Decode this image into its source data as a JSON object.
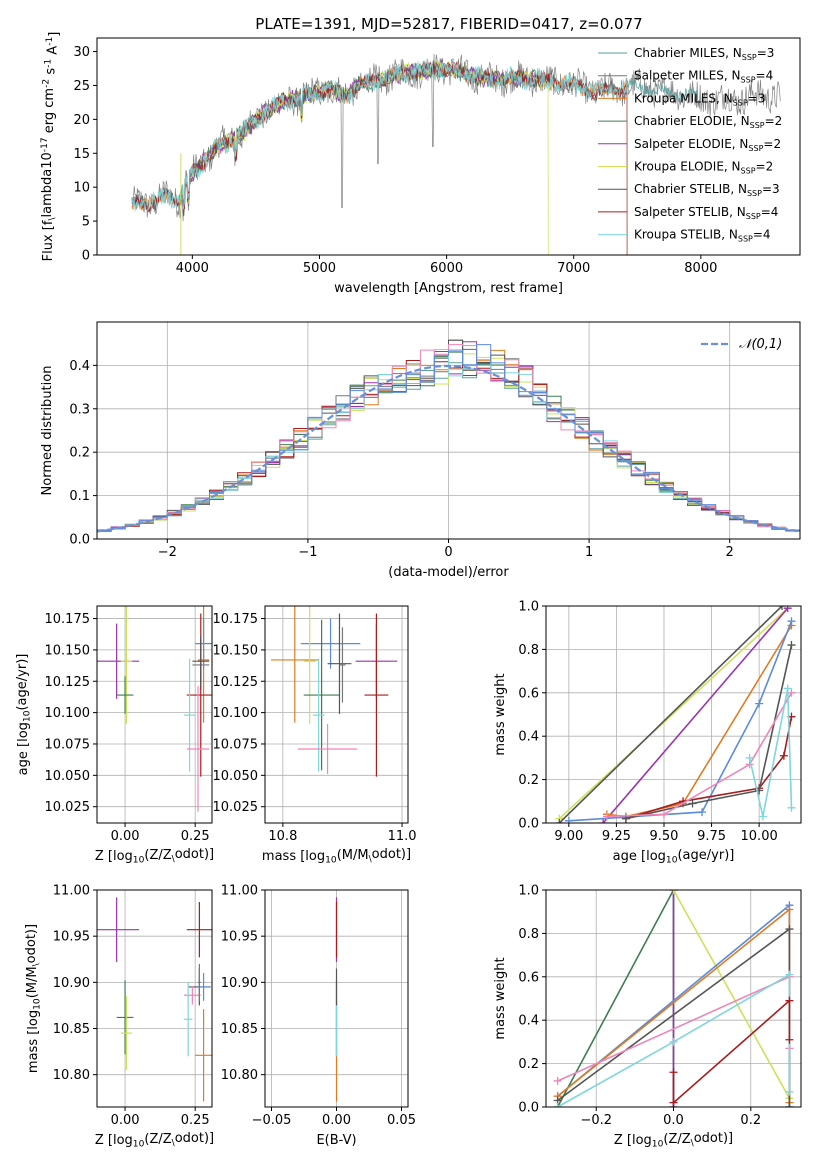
{
  "figure_title": "PLATE=1391, MJD=52817, FIBERID=0417, z=0.077",
  "colors": {
    "Chabrier MILES": "#5aa0a0",
    "Salpeter MILES": "#777777",
    "Kroupa MILES": "#e07b22",
    "Chabrier ELODIE": "#3e7d52",
    "Salpeter ELODIE": "#9b32b0",
    "Kroupa ELODIE": "#cfe05a",
    "Chabrier STELIB": "#555555",
    "Salpeter STELIB": "#a81c1c",
    "Kroupa STELIB": "#7fd6dc",
    "blue": "#5b8bd9",
    "pink": "#ee86b8",
    "normal_curve": "#6a90d6"
  },
  "chart_data": [
    {
      "id": "spectrum",
      "type": "line",
      "title": "PLATE=1391, MJD=52817, FIBERID=0417, z=0.077",
      "xlabel": "wavelength [Angstrom, rest frame]",
      "ylabel": "Flux [f$_\\lambda$10$^{-17}$ erg cm$^{-2}$ s$^{-1}$ A$^{-1}$]",
      "xlim": [
        3250,
        8780
      ],
      "ylim": [
        0,
        32
      ],
      "xticks": [
        4000,
        5000,
        6000,
        7000,
        8000
      ],
      "yticks": [
        0,
        5,
        10,
        15,
        20,
        25,
        30
      ],
      "legend_position": "top-right",
      "legend": [
        {
          "label": "Chabrier MILES",
          "suffix": "3",
          "color_key": "Chabrier MILES"
        },
        {
          "label": "Salpeter MILES",
          "suffix": "4",
          "color_key": "Salpeter MILES"
        },
        {
          "label": "Kroupa MILES",
          "suffix": "3",
          "color_key": "Kroupa MILES"
        },
        {
          "label": "Chabrier ELODIE",
          "suffix": "2",
          "color_key": "Chabrier ELODIE"
        },
        {
          "label": "Salpeter ELODIE",
          "suffix": "2",
          "color_key": "Salpeter ELODIE"
        },
        {
          "label": "Kroupa ELODIE",
          "suffix": "2",
          "color_key": "Kroupa ELODIE"
        },
        {
          "label": "Chabrier STELIB",
          "suffix": "3",
          "color_key": "Chabrier STELIB"
        },
        {
          "label": "Salpeter STELIB",
          "suffix": "4",
          "color_key": "Salpeter STELIB"
        },
        {
          "label": "Kroupa STELIB",
          "suffix": "4",
          "color_key": "Kroupa STELIB"
        }
      ],
      "continuum": [
        [
          3500,
          7
        ],
        [
          3600,
          8
        ],
        [
          3700,
          7.5
        ],
        [
          3800,
          9
        ],
        [
          3900,
          8
        ],
        [
          3950,
          11
        ],
        [
          4000,
          12
        ],
        [
          4100,
          14
        ],
        [
          4200,
          16
        ],
        [
          4300,
          17
        ],
        [
          4400,
          18
        ],
        [
          4500,
          20
        ],
        [
          4600,
          21.5
        ],
        [
          4700,
          22.5
        ],
        [
          4800,
          23
        ],
        [
          4900,
          23.5
        ],
        [
          5000,
          24
        ],
        [
          5100,
          24.5
        ],
        [
          5200,
          23.5
        ],
        [
          5300,
          25
        ],
        [
          5400,
          25.5
        ],
        [
          5500,
          26
        ],
        [
          5600,
          26.5
        ],
        [
          5700,
          27
        ],
        [
          5800,
          27
        ],
        [
          5900,
          27.5
        ],
        [
          6000,
          27.5
        ],
        [
          6100,
          27
        ],
        [
          6200,
          26.5
        ],
        [
          6300,
          26
        ],
        [
          6400,
          26
        ],
        [
          6500,
          26
        ],
        [
          6600,
          26
        ],
        [
          6700,
          26
        ],
        [
          6800,
          25.5
        ],
        [
          6900,
          25.5
        ],
        [
          7000,
          25
        ],
        [
          7100,
          24.5
        ],
        [
          7200,
          24
        ],
        [
          7300,
          24.5
        ],
        [
          7400,
          24.5
        ],
        [
          7500,
          25
        ],
        [
          7600,
          24.5
        ],
        [
          7700,
          24
        ],
        [
          7800,
          24
        ],
        [
          7900,
          23.5
        ],
        [
          8000,
          23
        ],
        [
          8100,
          23
        ],
        [
          8200,
          23
        ],
        [
          8300,
          23
        ],
        [
          8400,
          23.5
        ],
        [
          8500,
          23.5
        ],
        [
          8600,
          23.5
        ]
      ]
    },
    {
      "id": "residuals",
      "type": "line",
      "xlabel": "(data-model)/error",
      "ylabel": "Normed distribution",
      "xlim": [
        -2.5,
        2.5
      ],
      "ylim": [
        0,
        0.5
      ],
      "xticks": [
        -2,
        -1,
        0,
        1,
        2
      ],
      "yticks": [
        0.0,
        0.1,
        0.2,
        0.3,
        0.4
      ],
      "legend_position": "top-right",
      "legend": [
        {
          "label": "𝒩(0,1)",
          "color_key": "normal_curve"
        }
      ]
    },
    {
      "id": "age_vs_Z",
      "type": "scatter",
      "xlabel": "Z [log$_{10}$(Z/Z$_\\odot$)]",
      "ylabel": "age  [log$_{10}$($age/yr$)]",
      "xlim": [
        -0.1,
        0.31
      ],
      "ylim": [
        10.012,
        10.185
      ],
      "xticks": [
        0.0,
        0.25
      ],
      "yticks": [
        10.025,
        10.05,
        10.075,
        10.1,
        10.125,
        10.15,
        10.175
      ],
      "points": [
        {
          "c": "Salpeter ELODIE",
          "x": -0.03,
          "y": 10.141,
          "xe": 0.08,
          "ye": 0.03
        },
        {
          "c": "Kroupa ELODIE",
          "x": 0.005,
          "y": 10.141,
          "xe": 0.02,
          "ye": 0.05
        },
        {
          "c": "Chabrier ELODIE",
          "x": 0.0,
          "y": 10.114,
          "xe": 0.03,
          "ye": 0.015
        },
        {
          "c": "Kroupa MILES",
          "x": 0.28,
          "y": 10.142,
          "xe": 0.02,
          "ye": 0.05
        },
        {
          "c": "Salpeter MILES",
          "x": 0.27,
          "y": 10.138,
          "xe": 0.03,
          "ye": 0.02
        },
        {
          "c": "blue",
          "x": 0.28,
          "y": 10.155,
          "xe": 0.03,
          "ye": 0.02
        },
        {
          "c": "Salpeter STELIB",
          "x": 0.27,
          "y": 10.114,
          "xe": 0.05,
          "ye": 0.065
        },
        {
          "c": "Kroupa STELIB",
          "x": 0.23,
          "y": 10.098,
          "xe": 0.02,
          "ye": 0.045
        },
        {
          "c": "pink",
          "x": 0.26,
          "y": 10.071,
          "xe": 0.04,
          "ye": 0.05
        },
        {
          "c": "Chabrier STELIB",
          "x": 0.27,
          "y": 10.141,
          "xe": 0.03,
          "ye": 0.02
        }
      ]
    },
    {
      "id": "age_vs_mass",
      "type": "scatter",
      "xlabel": "mass [log$_{10}$($M/M_\\odot$)]",
      "ylabel": "",
      "xlim": [
        10.77,
        11.01
      ],
      "ylim": [
        10.012,
        10.185
      ],
      "xticks": [
        10.8,
        11.0
      ],
      "yticks": [
        10.025,
        10.05,
        10.075,
        10.1,
        10.125,
        10.15,
        10.175
      ],
      "points": [
        {
          "c": "Kroupa MILES",
          "x": 10.82,
          "y": 10.142,
          "xe": 0.04,
          "ye": 0.05
        },
        {
          "c": "blue",
          "x": 10.88,
          "y": 10.155,
          "xe": 0.05,
          "ye": 0.02
        },
        {
          "c": "Kroupa ELODIE",
          "x": 10.845,
          "y": 10.141,
          "xe": 0.01,
          "ye": 0.05
        },
        {
          "c": "Chabrier ELODIE",
          "x": 10.865,
          "y": 10.114,
          "xe": 0.03,
          "ye": 0.06
        },
        {
          "c": "Kroupa STELIB",
          "x": 10.86,
          "y": 10.098,
          "xe": 0.01,
          "ye": 0.045
        },
        {
          "c": "pink",
          "x": 10.875,
          "y": 10.071,
          "xe": 0.05,
          "ye": 0.02
        },
        {
          "c": "Chabrier STELIB",
          "x": 10.895,
          "y": 10.139,
          "xe": 0.02,
          "ye": 0.04
        },
        {
          "c": "Salpeter ELODIE",
          "x": 10.957,
          "y": 10.141,
          "xe": 0.035,
          "ye": 0.03
        },
        {
          "c": "Salpeter STELIB",
          "x": 10.957,
          "y": 10.114,
          "xe": 0.02,
          "ye": 0.065
        },
        {
          "c": "Salpeter MILES",
          "x": 10.9,
          "y": 10.138,
          "xe": 0.005,
          "ye": 0.03
        }
      ]
    },
    {
      "id": "massweight_vs_age",
      "type": "line",
      "xlabel": "age  [log$_{10}$($age/yr$)]",
      "ylabel": "mass weight",
      "xlim": [
        8.88,
        10.22
      ],
      "ylim": [
        0,
        1
      ],
      "xticks": [
        9.0,
        9.25,
        9.5,
        9.75,
        10.0
      ],
      "yticks": [
        0.0,
        0.2,
        0.4,
        0.6,
        0.8,
        1.0
      ],
      "series": [
        {
          "c": "Kroupa ELODIE",
          "x": [
            8.95,
            10.15
          ],
          "y": [
            0.02,
            0.99
          ]
        },
        {
          "c": "Chabrier STELIB",
          "x": [
            8.95,
            10.12
          ],
          "y": [
            0.0,
            1.0
          ]
        },
        {
          "c": "Salpeter ELODIE",
          "x": [
            9.18,
            10.15
          ],
          "y": [
            0.0,
            0.99
          ]
        },
        {
          "c": "Kroupa MILES",
          "x": [
            9.2,
            9.3,
            9.6,
            10.17
          ],
          "y": [
            0.04,
            0.03,
            0.09,
            0.91
          ]
        },
        {
          "c": "blue",
          "x": [
            9.0,
            9.7,
            10.0,
            10.17
          ],
          "y": [
            0.01,
            0.05,
            0.55,
            0.93
          ]
        },
        {
          "c": "Salpeter STELIB",
          "x": [
            9.3,
            9.6,
            10.0,
            10.13,
            10.17
          ],
          "y": [
            0.02,
            0.1,
            0.16,
            0.31,
            0.49
          ]
        },
        {
          "c": "Chabrier STELIB",
          "x": [
            9.3,
            9.65,
            10.0,
            10.17
          ],
          "y": [
            0.02,
            0.09,
            0.15,
            0.82
          ]
        },
        {
          "c": "pink",
          "x": [
            9.2,
            9.5,
            9.95,
            10.17
          ],
          "y": [
            0.03,
            0.04,
            0.27,
            0.6
          ]
        },
        {
          "c": "Kroupa STELIB",
          "x": [
            9.95,
            10.02,
            10.15,
            10.17
          ],
          "y": [
            0.3,
            0.03,
            0.62,
            0.07
          ]
        }
      ]
    },
    {
      "id": "mass_vs_Z",
      "type": "scatter",
      "xlabel": "Z [log$_{10}$(Z/Z$_\\odot$)]",
      "ylabel": "mass [log$_{10}$($M/M_\\odot$)]",
      "xlim": [
        -0.1,
        0.31
      ],
      "ylim": [
        10.765,
        11.0
      ],
      "xticks": [
        0.0,
        0.25
      ],
      "yticks": [
        10.8,
        10.85,
        10.9,
        10.95,
        11.0
      ],
      "points": [
        {
          "c": "Salpeter ELODIE",
          "x": -0.03,
          "y": 10.957,
          "xe": 0.08,
          "ye": 0.035
        },
        {
          "c": "Chabrier ELODIE",
          "x": 0.0,
          "y": 10.862,
          "xe": 0.03,
          "ye": 0.04
        },
        {
          "c": "Kroupa ELODIE",
          "x": 0.005,
          "y": 10.845,
          "xe": 0.02,
          "ye": 0.04
        },
        {
          "c": "Salpeter STELIB",
          "x": 0.265,
          "y": 10.957,
          "xe": 0.045,
          "ye": 0.03
        },
        {
          "c": "Chabrier STELIB",
          "x": 0.265,
          "y": 10.895,
          "xe": 0.04,
          "ye": 0.02
        },
        {
          "c": "blue",
          "x": 0.28,
          "y": 10.895,
          "xe": 0.02,
          "ye": 0.015
        },
        {
          "c": "pink",
          "x": 0.24,
          "y": 10.886,
          "xe": 0.03,
          "ye": 0.01
        },
        {
          "c": "Kroupa STELIB",
          "x": 0.225,
          "y": 10.86,
          "xe": 0.015,
          "ye": 0.04
        },
        {
          "c": "Kroupa MILES",
          "x": 0.28,
          "y": 10.821,
          "xe": 0.03,
          "ye": 0.05
        },
        {
          "c": "Salpeter MILES",
          "x": 0.265,
          "y": 10.9,
          "xe": 0.005,
          "ye": 0.02
        }
      ]
    },
    {
      "id": "mass_vs_EBV",
      "type": "scatter",
      "xlabel": "E(B-V)",
      "ylabel": "",
      "xlim": [
        -0.055,
        0.055
      ],
      "ylim": [
        10.765,
        11.0
      ],
      "xticks": [
        -0.05,
        0.0,
        0.05
      ],
      "yticks": [
        10.8,
        10.85,
        10.9,
        10.95,
        11.0
      ],
      "points": [
        {
          "c": "Salpeter ELODIE",
          "x": 0.0,
          "y": 10.957,
          "xe": 0.0,
          "ye": 0.035
        },
        {
          "c": "Salpeter STELIB",
          "x": 0.0,
          "y": 10.957,
          "xe": 0.0,
          "ye": 0.03
        },
        {
          "c": "Chabrier ELODIE",
          "x": 0.0,
          "y": 10.862,
          "xe": 0.0,
          "ye": 0.04
        },
        {
          "c": "Kroupa ELODIE",
          "x": 0.0,
          "y": 10.845,
          "xe": 0.0,
          "ye": 0.04
        },
        {
          "c": "Kroupa MILES",
          "x": 0.0,
          "y": 10.821,
          "xe": 0.0,
          "ye": 0.05
        },
        {
          "c": "Kroupa STELIB",
          "x": 0.0,
          "y": 10.86,
          "xe": 0.0,
          "ye": 0.04
        },
        {
          "c": "Chabrier STELIB",
          "x": 0.0,
          "y": 10.895,
          "xe": 0.0,
          "ye": 0.02
        }
      ]
    },
    {
      "id": "massweight_vs_Z",
      "type": "line",
      "xlabel": "Z [log$_{10}$(Z/Z$_\\odot$)]",
      "ylabel": "mass weight",
      "xlim": [
        -0.33,
        0.33
      ],
      "ylim": [
        0,
        1
      ],
      "xticks": [
        -0.2,
        0.0,
        0.2
      ],
      "yticks": [
        0.0,
        0.2,
        0.4,
        0.6,
        0.8,
        1.0
      ],
      "series": [
        {
          "c": "Chabrier ELODIE",
          "x": [
            -0.3,
            0.0,
            0.0
          ],
          "y": [
            0.0,
            1.0,
            0.0
          ]
        },
        {
          "c": "Salpeter ELODIE",
          "x": [
            0.0,
            0.0
          ],
          "y": [
            1.0,
            0.0
          ]
        },
        {
          "c": "Kroupa ELODIE",
          "x": [
            0.0,
            0.3,
            0.3
          ],
          "y": [
            1.0,
            0.04,
            0.0
          ]
        },
        {
          "c": "blue",
          "x": [
            -0.3,
            0.3,
            0.3
          ],
          "y": [
            0.05,
            0.93,
            0.0
          ]
        },
        {
          "c": "Kroupa MILES",
          "x": [
            -0.3,
            0.3,
            0.3
          ],
          "y": [
            0.05,
            0.91,
            0.02
          ]
        },
        {
          "c": "Chabrier STELIB",
          "x": [
            -0.3,
            0.3,
            0.3
          ],
          "y": [
            0.03,
            0.82,
            0.0
          ]
        },
        {
          "c": "pink",
          "x": [
            -0.3,
            0.3,
            0.3
          ],
          "y": [
            0.12,
            0.6,
            0.27
          ]
        },
        {
          "c": "Kroupa STELIB",
          "x": [
            -0.3,
            0.0,
            0.3,
            0.3
          ],
          "y": [
            0.0,
            0.3,
            0.61,
            0.07
          ]
        },
        {
          "c": "Salpeter STELIB",
          "x": [
            0.0,
            0.0,
            0.3,
            0.3
          ],
          "y": [
            0.16,
            0.02,
            0.49,
            0.31
          ]
        }
      ]
    }
  ]
}
